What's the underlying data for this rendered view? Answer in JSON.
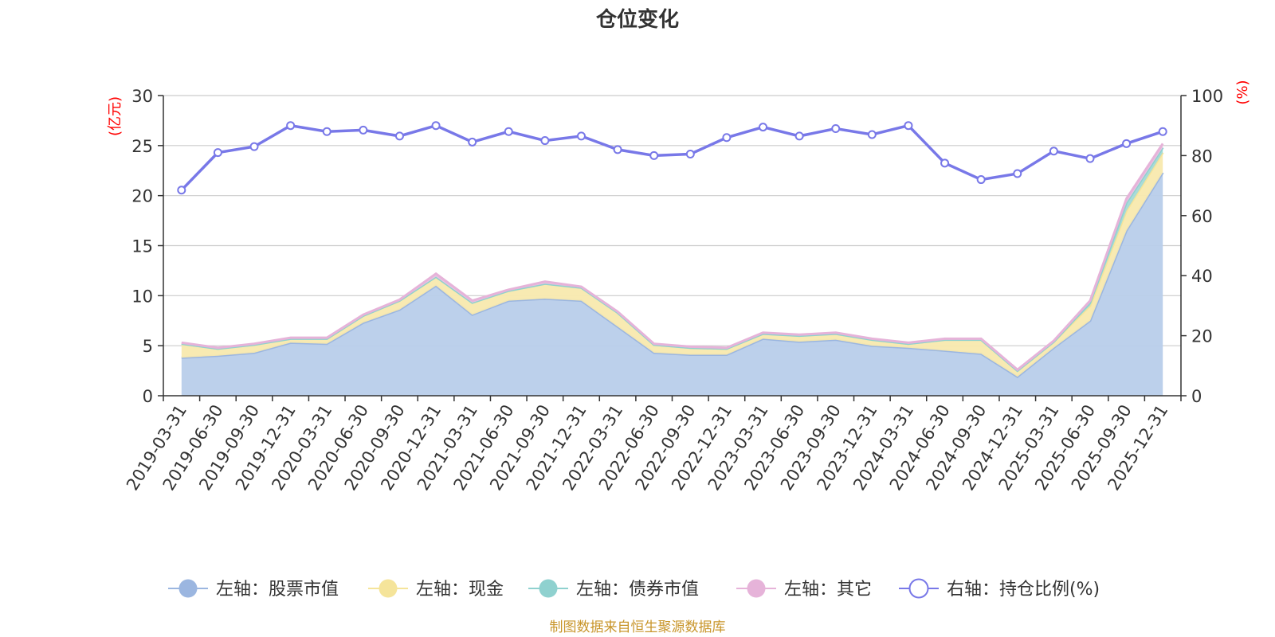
{
  "chart_data": {
    "type": "area",
    "title": "仓位变化",
    "left_axis_unit": "(亿元)",
    "right_axis_unit": "(%)",
    "left_ylim": [
      0,
      30
    ],
    "left_ticks": [
      0,
      5,
      10,
      15,
      20,
      25,
      30
    ],
    "right_ylim": [
      0,
      100
    ],
    "right_ticks": [
      0,
      20,
      40,
      60,
      80,
      100
    ],
    "grid": true,
    "legend_position": "bottom",
    "categories": [
      "2019-03-31",
      "2019-06-30",
      "2019-09-30",
      "2019-12-31",
      "2020-03-31",
      "2020-06-30",
      "2020-09-30",
      "2020-12-31",
      "2021-03-31",
      "2021-06-30",
      "2021-09-30",
      "2021-12-31",
      "2022-03-31",
      "2022-06-30",
      "2022-09-30",
      "2022-12-31",
      "2023-03-31",
      "2023-06-30",
      "2023-09-30",
      "2023-12-31",
      "2024-03-31",
      "2024-06-30",
      "2024-09-30",
      "2024-12-31",
      "2025-03-31",
      "2025-06-30",
      "2025-09-30",
      "2025-12-31"
    ],
    "series": [
      {
        "name": "左轴：股票市值",
        "axis": "left",
        "kind": "stacked-area",
        "color": "#9bb6e0",
        "fill": "#b8cdea",
        "values": [
          3.8,
          4.0,
          4.3,
          5.3,
          5.2,
          7.3,
          8.6,
          11.0,
          8.1,
          9.5,
          9.7,
          9.5,
          6.9,
          4.3,
          4.1,
          4.1,
          5.7,
          5.4,
          5.6,
          5.0,
          4.8,
          4.5,
          4.2,
          1.9,
          4.8,
          7.5,
          16.5,
          22.3
        ]
      },
      {
        "name": "左轴：现金",
        "axis": "left",
        "kind": "stacked-area",
        "color": "#f5e49a",
        "fill": "#f8e9ae",
        "values": [
          1.4,
          0.7,
          0.8,
          0.4,
          0.5,
          0.7,
          0.9,
          0.9,
          1.2,
          1.0,
          1.5,
          1.3,
          1.4,
          0.8,
          0.7,
          0.6,
          0.5,
          0.6,
          0.6,
          0.6,
          0.4,
          1.1,
          1.4,
          0.6,
          0.6,
          1.5,
          2.0,
          2.0
        ]
      },
      {
        "name": "左轴：债券市值",
        "axis": "left",
        "kind": "stacked-area",
        "color": "#8fd1cf",
        "fill": "#a3dad8",
        "values": [
          0,
          0,
          0,
          0,
          0,
          0,
          0,
          0,
          0,
          0,
          0,
          0,
          0,
          0,
          0,
          0,
          0,
          0,
          0,
          0,
          0,
          0,
          0,
          0,
          0,
          0.3,
          0.8,
          0.5
        ]
      },
      {
        "name": "左轴：其它",
        "axis": "left",
        "kind": "stacked-area",
        "color": "#e6b3d9",
        "fill": "#edc3e3",
        "values": [
          0.1,
          0.1,
          0.1,
          0.1,
          0.1,
          0.1,
          0.1,
          0.3,
          0.2,
          0.1,
          0.2,
          0.1,
          0.1,
          0.1,
          0.1,
          0.1,
          0.1,
          0.1,
          0.1,
          0.1,
          0.1,
          0.1,
          0.1,
          0.1,
          0.1,
          0.2,
          0.4,
          0.4
        ]
      },
      {
        "name": "右轴：持仓比例(%)",
        "axis": "right",
        "kind": "line",
        "color": "#7878e8",
        "values": [
          68.5,
          81,
          83,
          90,
          88,
          88.5,
          86.5,
          90,
          84.5,
          88,
          85,
          86.5,
          82,
          80,
          80.5,
          86,
          89.5,
          86.5,
          89,
          87,
          90,
          77.5,
          72,
          74,
          81.5,
          79,
          84,
          88
        ]
      }
    ]
  },
  "legend": {
    "items": [
      "左轴：股票市值",
      "左轴：现金",
      "左轴：债券市值",
      "左轴：其它",
      "右轴：持仓比例(%)"
    ]
  },
  "footer": {
    "source": "制图数据来自恒生聚源数据库"
  }
}
